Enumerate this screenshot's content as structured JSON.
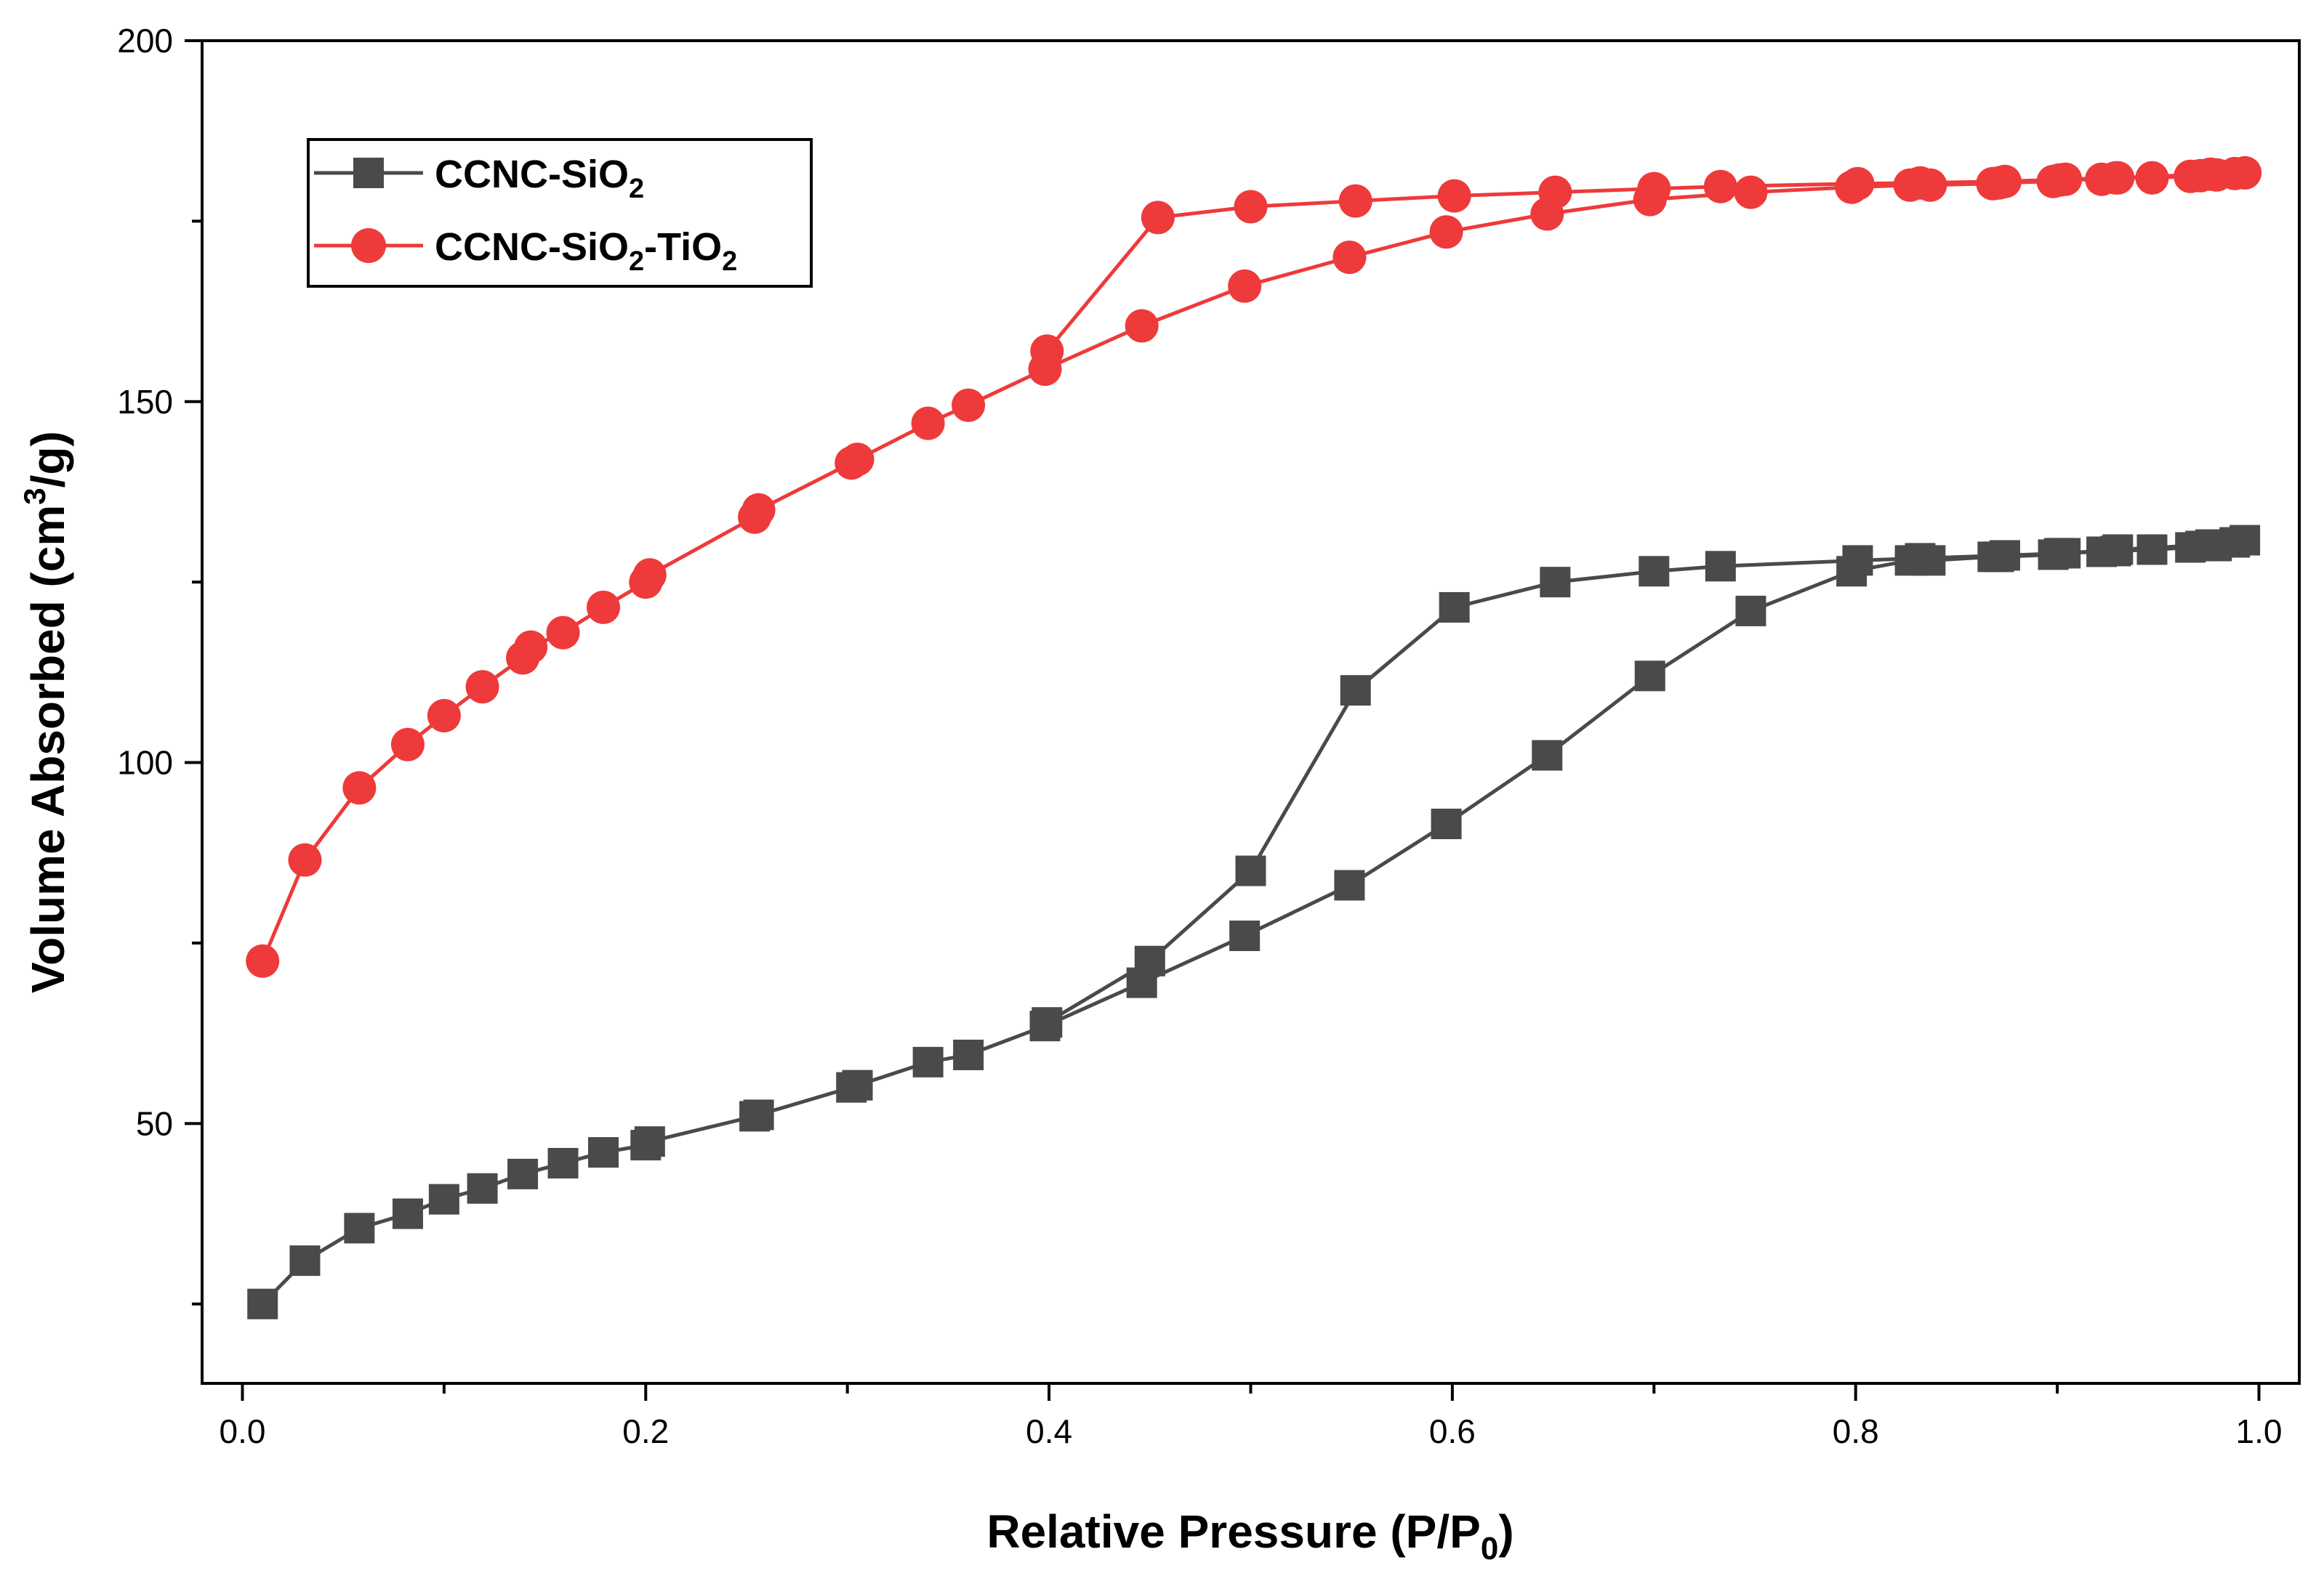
{
  "chart_data": {
    "type": "line",
    "xlabel": {
      "main": "Relative Pressure (P/P",
      "sub": "0",
      "tail": ")"
    },
    "ylabel": {
      "main": "Volume Absorbed (cm",
      "sup": "3",
      "tail": "/g)"
    },
    "xlim": [
      -0.02,
      1.02
    ],
    "ylim": [
      14,
      200
    ],
    "x_ticks": [
      0.0,
      0.1,
      0.2,
      0.3,
      0.4,
      0.5,
      0.6,
      0.7,
      0.8,
      0.9,
      1.0
    ],
    "x_tick_labels": [
      "0.0",
      "",
      "0.2",
      "",
      "0.4",
      "",
      "0.6",
      "",
      "0.8",
      "",
      "1.0"
    ],
    "y_ticks": [
      25,
      50,
      75,
      100,
      125,
      150,
      175,
      200
    ],
    "y_tick_labels": [
      "",
      "50",
      "",
      "100",
      "",
      "150",
      "",
      "200"
    ],
    "grid": false,
    "legend_position": "top-left",
    "series": [
      {
        "name": {
          "main": "CCNC-SiO",
          "sub": "2",
          "tail": ""
        },
        "name_text": "CCNC-SiO2",
        "color": "#4a4a4a",
        "marker": "square",
        "x": [
          0.01,
          0.031,
          0.058,
          0.082,
          0.1,
          0.119,
          0.139,
          0.159,
          0.179,
          0.2,
          0.202,
          0.254,
          0.256,
          0.302,
          0.305,
          0.34,
          0.36,
          0.398,
          0.446,
          0.497,
          0.549,
          0.597,
          0.647,
          0.698,
          0.748,
          0.798,
          0.827,
          0.837,
          0.868,
          0.871,
          0.898,
          0.901,
          0.922,
          0.929,
          0.947,
          0.966,
          0.971,
          0.979,
          0.988,
          0.993,
          0.976,
          0.93,
          0.904,
          0.874,
          0.832,
          0.801,
          0.733,
          0.7,
          0.651,
          0.601,
          0.552,
          0.5,
          0.45,
          0.399
        ],
        "y": [
          25,
          31,
          35.5,
          37.5,
          39.5,
          41,
          43,
          44.5,
          46,
          47,
          47.5,
          51,
          51.2,
          55,
          55.3,
          58.5,
          59.5,
          63.5,
          69.5,
          76,
          83,
          91.5,
          101,
          112,
          121,
          126.5,
          128,
          128,
          128.5,
          128.5,
          128.8,
          129,
          129.2,
          129.3,
          129.5,
          129.8,
          130,
          130,
          130.5,
          130.8,
          130.2,
          129.5,
          129,
          128.7,
          128.3,
          128,
          127.2,
          126.5,
          125,
          121.5,
          110,
          85,
          72.5,
          64
        ]
      },
      {
        "name": {
          "main": "CCNC-SiO",
          "sub": "2",
          "tail": "-TiO",
          "sub2": "2"
        },
        "name_text": "CCNC-SiO2-TiO2",
        "color": "#ee3a3a",
        "marker": "circle",
        "x": [
          0.01,
          0.031,
          0.058,
          0.082,
          0.1,
          0.119,
          0.139,
          0.143,
          0.159,
          0.179,
          0.2,
          0.202,
          0.254,
          0.256,
          0.302,
          0.305,
          0.34,
          0.36,
          0.398,
          0.446,
          0.497,
          0.549,
          0.597,
          0.647,
          0.698,
          0.748,
          0.798,
          0.827,
          0.837,
          0.868,
          0.871,
          0.898,
          0.901,
          0.922,
          0.929,
          0.947,
          0.966,
          0.971,
          0.979,
          0.988,
          0.993,
          0.976,
          0.93,
          0.904,
          0.874,
          0.832,
          0.801,
          0.733,
          0.7,
          0.651,
          0.601,
          0.552,
          0.5,
          0.454,
          0.399
        ],
        "y": [
          72.5,
          86.5,
          96.5,
          102.5,
          106.5,
          110.5,
          114.5,
          116,
          118,
          121.5,
          125,
          126,
          134,
          135,
          141.5,
          142,
          147,
          149.5,
          154.5,
          160.5,
          166,
          170,
          173.5,
          176,
          178,
          179,
          179.7,
          180,
          180,
          180.2,
          180.3,
          180.5,
          180.7,
          180.8,
          181,
          181,
          181.2,
          181.3,
          181.4,
          181.6,
          181.7,
          181.5,
          181,
          180.8,
          180.5,
          180.3,
          180.2,
          179.8,
          179.5,
          179,
          178.5,
          177.8,
          177,
          175.5,
          157
        ]
      }
    ]
  }
}
